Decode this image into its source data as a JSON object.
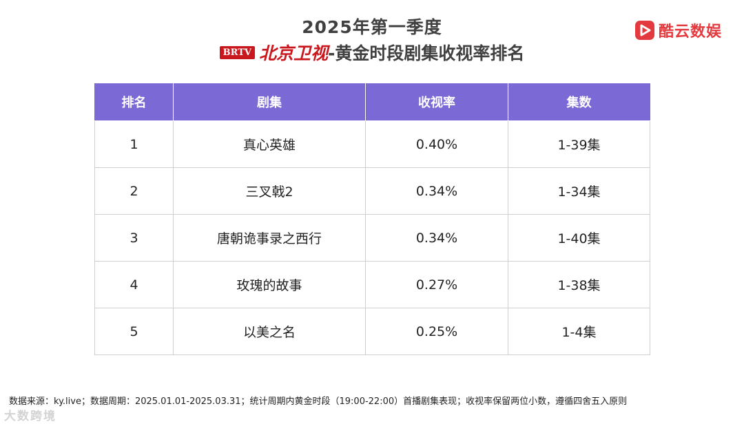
{
  "header": {
    "title_line1": "2025年第一季度",
    "brtv_logo": "BRTV",
    "channel": "北京卫视",
    "title_line2_suffix": "-黄金时段剧集收视率排名"
  },
  "brand": {
    "name": "酷云数娱",
    "icon": "play-logo-icon",
    "color": "#e33a3f"
  },
  "colors": {
    "header_bg": "#7b6ad6",
    "channel_red": "#c9171e"
  },
  "table": {
    "columns": [
      "排名",
      "剧集",
      "收视率",
      "集数"
    ],
    "rows": [
      [
        "1",
        "真心英雄",
        "0.40%",
        "1-39集"
      ],
      [
        "2",
        "三叉戟2",
        "0.34%",
        "1-34集"
      ],
      [
        "3",
        "唐朝诡事录之西行",
        "0.34%",
        "1-40集"
      ],
      [
        "4",
        "玫瑰的故事",
        "0.27%",
        "1-38集"
      ],
      [
        "5",
        "以美之名",
        "0.25%",
        "1-4集"
      ]
    ]
  },
  "footer": {
    "note": "数据来源：ky.live；数据周期：2025.01.01-2025.03.31；统计周期内黄金时段（19:00-22:00）首播剧集表现；收视率保留两位小数，遵循四舍五入原则"
  },
  "watermark": "大数跨境"
}
